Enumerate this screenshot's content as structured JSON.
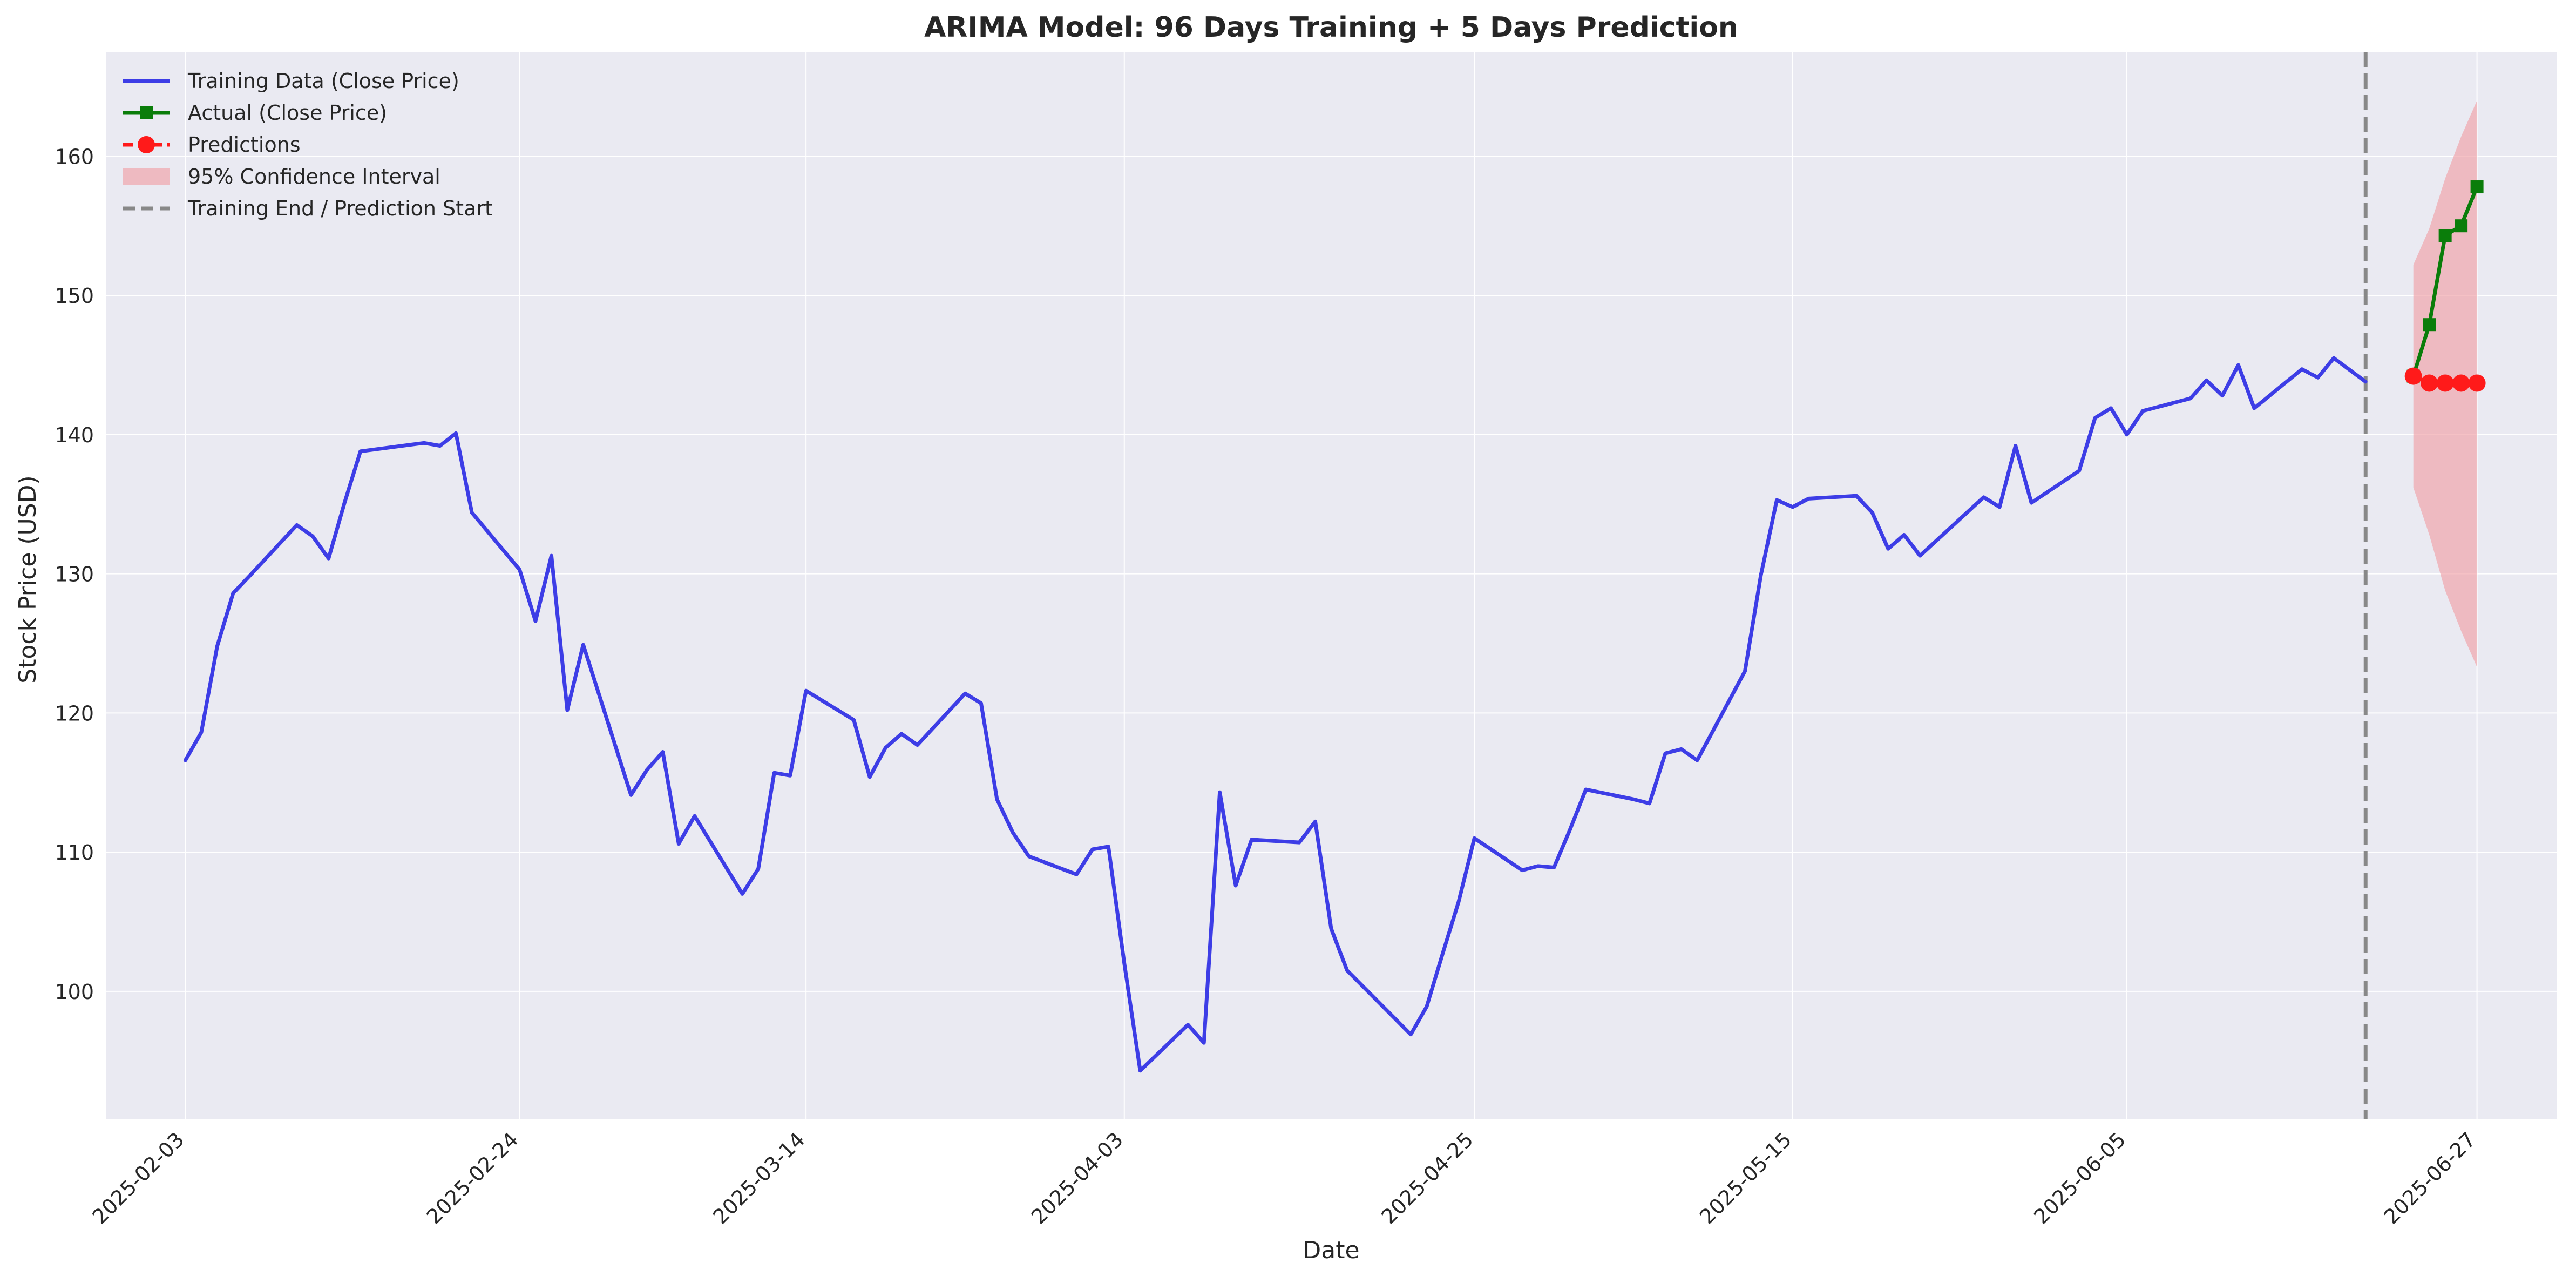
{
  "chart_data": {
    "type": "line",
    "title": "ARIMA Model: 96 Days Training + 5 Days Prediction",
    "xlabel": "Date",
    "ylabel": "Stock Price (USD)",
    "ylim": [
      90.8,
      167.5
    ],
    "yticks": [
      100,
      110,
      120,
      130,
      140,
      150,
      160
    ],
    "xlim": [
      "2025-01-29",
      "2025-07-02"
    ],
    "xticks": [
      "2025-02-03",
      "2025-02-24",
      "2025-03-14",
      "2025-04-03",
      "2025-04-25",
      "2025-05-15",
      "2025-06-05",
      "2025-06-27"
    ],
    "grid": true,
    "legend_position": "top-left",
    "training_end": "2025-06-20",
    "series": [
      {
        "name": "Training Data (Close Price)",
        "color": "#3d3de6",
        "marker": "none",
        "points": [
          [
            "2025-02-03",
            116.6
          ],
          [
            "2025-02-04",
            118.6
          ],
          [
            "2025-02-05",
            124.8
          ],
          [
            "2025-02-06",
            128.6
          ],
          [
            "2025-02-07",
            129.8
          ],
          [
            "2025-02-10",
            133.5
          ],
          [
            "2025-02-11",
            132.7
          ],
          [
            "2025-02-12",
            131.1
          ],
          [
            "2025-02-13",
            135.1
          ],
          [
            "2025-02-14",
            138.8
          ],
          [
            "2025-02-18",
            139.4
          ],
          [
            "2025-02-19",
            139.2
          ],
          [
            "2025-02-20",
            140.1
          ],
          [
            "2025-02-21",
            134.4
          ],
          [
            "2025-02-24",
            130.3
          ],
          [
            "2025-02-25",
            126.6
          ],
          [
            "2025-02-26",
            131.3
          ],
          [
            "2025-02-27",
            120.2
          ],
          [
            "2025-02-28",
            124.9
          ],
          [
            "2025-03-03",
            114.1
          ],
          [
            "2025-03-04",
            115.9
          ],
          [
            "2025-03-05",
            117.2
          ],
          [
            "2025-03-06",
            110.6
          ],
          [
            "2025-03-07",
            112.6
          ],
          [
            "2025-03-10",
            107.0
          ],
          [
            "2025-03-11",
            108.8
          ],
          [
            "2025-03-12",
            115.7
          ],
          [
            "2025-03-13",
            115.5
          ],
          [
            "2025-03-14",
            121.6
          ],
          [
            "2025-03-17",
            119.5
          ],
          [
            "2025-03-18",
            115.4
          ],
          [
            "2025-03-19",
            117.5
          ],
          [
            "2025-03-20",
            118.5
          ],
          [
            "2025-03-21",
            117.7
          ],
          [
            "2025-03-24",
            121.4
          ],
          [
            "2025-03-25",
            120.7
          ],
          [
            "2025-03-26",
            113.8
          ],
          [
            "2025-03-27",
            111.4
          ],
          [
            "2025-03-28",
            109.7
          ],
          [
            "2025-03-31",
            108.4
          ],
          [
            "2025-04-01",
            110.2
          ],
          [
            "2025-04-02",
            110.4
          ],
          [
            "2025-04-03",
            102.0
          ],
          [
            "2025-04-04",
            94.3
          ],
          [
            "2025-04-07",
            97.6
          ],
          [
            "2025-04-08",
            96.3
          ],
          [
            "2025-04-09",
            114.3
          ],
          [
            "2025-04-10",
            107.6
          ],
          [
            "2025-04-11",
            110.9
          ],
          [
            "2025-04-14",
            110.7
          ],
          [
            "2025-04-15",
            112.2
          ],
          [
            "2025-04-16",
            104.5
          ],
          [
            "2025-04-17",
            101.5
          ],
          [
            "2025-04-21",
            96.9
          ],
          [
            "2025-04-22",
            98.9
          ],
          [
            "2025-04-23",
            102.7
          ],
          [
            "2025-04-24",
            106.4
          ],
          [
            "2025-04-25",
            111.0
          ],
          [
            "2025-04-28",
            108.7
          ],
          [
            "2025-04-29",
            109.0
          ],
          [
            "2025-04-30",
            108.9
          ],
          [
            "2025-05-01",
            111.6
          ],
          [
            "2025-05-02",
            114.5
          ],
          [
            "2025-05-05",
            113.8
          ],
          [
            "2025-05-06",
            113.5
          ],
          [
            "2025-05-07",
            117.1
          ],
          [
            "2025-05-08",
            117.4
          ],
          [
            "2025-05-09",
            116.6
          ],
          [
            "2025-05-12",
            123.0
          ],
          [
            "2025-05-13",
            129.9
          ],
          [
            "2025-05-14",
            135.3
          ],
          [
            "2025-05-15",
            134.8
          ],
          [
            "2025-05-16",
            135.4
          ],
          [
            "2025-05-19",
            135.6
          ],
          [
            "2025-05-20",
            134.4
          ],
          [
            "2025-05-21",
            131.8
          ],
          [
            "2025-05-22",
            132.8
          ],
          [
            "2025-05-23",
            131.3
          ],
          [
            "2025-05-27",
            135.5
          ],
          [
            "2025-05-28",
            134.8
          ],
          [
            "2025-05-29",
            139.2
          ],
          [
            "2025-05-30",
            135.1
          ],
          [
            "2025-06-02",
            137.4
          ],
          [
            "2025-06-03",
            141.2
          ],
          [
            "2025-06-04",
            141.9
          ],
          [
            "2025-06-05",
            140.0
          ],
          [
            "2025-06-06",
            141.7
          ],
          [
            "2025-06-09",
            142.6
          ],
          [
            "2025-06-10",
            143.9
          ],
          [
            "2025-06-11",
            142.8
          ],
          [
            "2025-06-12",
            145.0
          ],
          [
            "2025-06-13",
            141.9
          ],
          [
            "2025-06-16",
            144.7
          ],
          [
            "2025-06-17",
            144.1
          ],
          [
            "2025-06-18",
            145.5
          ],
          [
            "2025-06-20",
            143.8
          ]
        ]
      },
      {
        "name": "Actual (Close Price)",
        "color": "#0a7d0a",
        "marker": "square",
        "points": [
          [
            "2025-06-23",
            144.2
          ],
          [
            "2025-06-24",
            147.9
          ],
          [
            "2025-06-25",
            154.3
          ],
          [
            "2025-06-26",
            155.0
          ],
          [
            "2025-06-27",
            157.8
          ]
        ]
      },
      {
        "name": "Predictions",
        "color": "#ff1a1a",
        "marker": "circle",
        "dashed": true,
        "points": [
          [
            "2025-06-23",
            144.2
          ],
          [
            "2025-06-24",
            143.7
          ],
          [
            "2025-06-25",
            143.7
          ],
          [
            "2025-06-26",
            143.7
          ],
          [
            "2025-06-27",
            143.7
          ]
        ]
      }
    ],
    "confidence_interval": {
      "name": "95% Confidence Interval",
      "color": "#f0a0a6",
      "x": [
        "2025-06-23",
        "2025-06-24",
        "2025-06-25",
        "2025-06-26",
        "2025-06-27"
      ],
      "upper": [
        152.2,
        154.8,
        158.4,
        161.4,
        164.0
      ],
      "lower": [
        136.2,
        132.8,
        128.8,
        125.9,
        123.3
      ]
    },
    "vline": {
      "name": "Training End / Prediction Start",
      "color": "#888888"
    }
  }
}
